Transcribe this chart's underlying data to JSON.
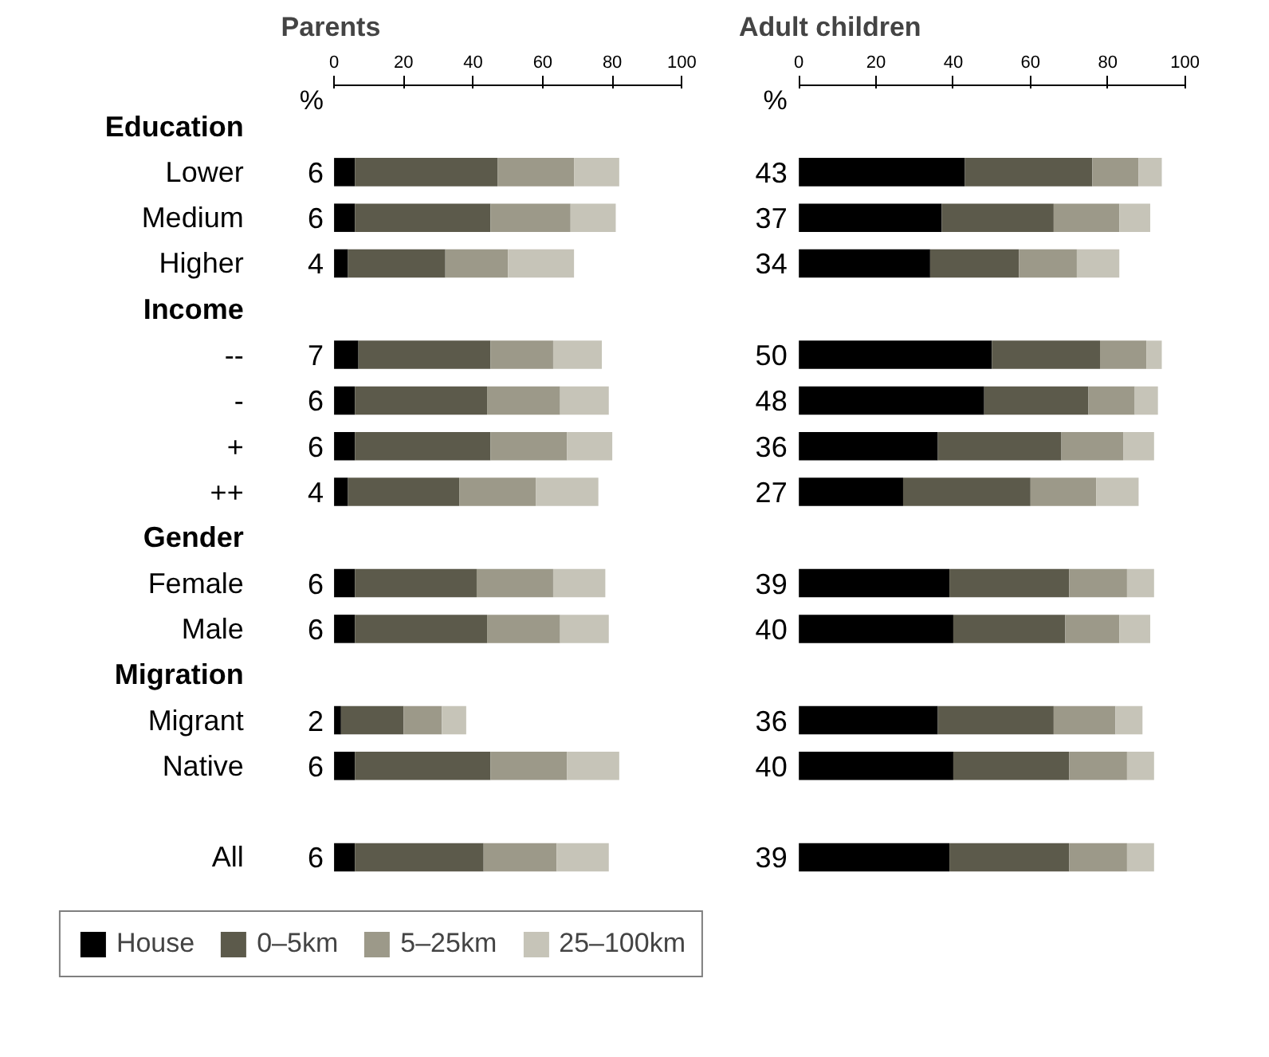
{
  "chart_data": [
    {
      "type": "bar",
      "orientation": "horizontal",
      "stacked": true,
      "title": "Parents",
      "xlabel": "%",
      "categories": [
        "Education",
        "Lower",
        "Medium",
        "Higher",
        "Income",
        "--",
        "-",
        "+",
        "++",
        "Gender",
        "Female",
        "Male",
        "Migration",
        "Migrant",
        "Native",
        null,
        "All"
      ],
      "series": [
        {
          "name": "House",
          "color": "#000000",
          "values": [
            null,
            6,
            6,
            4,
            null,
            7,
            6,
            6,
            4,
            null,
            6,
            6,
            null,
            2,
            6,
            null,
            6
          ],
          "value_labels": [
            null,
            "6",
            "6",
            "4",
            null,
            "7",
            "6",
            "6",
            "4",
            null,
            "6",
            "6",
            null,
            "2",
            "6",
            null,
            "6"
          ]
        },
        {
          "name": "0–5km",
          "color": "#5c5a4b",
          "values": [
            null,
            41,
            39,
            28,
            null,
            38,
            38,
            39,
            32,
            null,
            35,
            38,
            null,
            18,
            39,
            null,
            37
          ]
        },
        {
          "name": "5–25km",
          "color": "#9c9989",
          "values": [
            null,
            22,
            23,
            18,
            null,
            18,
            21,
            22,
            22,
            null,
            22,
            21,
            null,
            11,
            22,
            null,
            21
          ]
        },
        {
          "name": "25–100km",
          "color": "#c6c4b8",
          "values": [
            null,
            13,
            13,
            19,
            null,
            14,
            14,
            13,
            18,
            null,
            15,
            14,
            null,
            7,
            15,
            null,
            15
          ]
        }
      ],
      "xlim": [
        0,
        100
      ],
      "xticks": [
        0,
        20,
        40,
        60,
        80,
        100
      ],
      "grid": false,
      "legend": "bottom"
    },
    {
      "type": "bar",
      "orientation": "horizontal",
      "stacked": true,
      "title": "Adult children",
      "xlabel": "%",
      "categories": [
        null,
        null,
        null,
        null,
        null,
        null,
        null,
        null,
        null,
        null,
        null,
        null,
        null,
        null,
        null,
        null,
        null
      ],
      "series": [
        {
          "color": "#000000",
          "values": [
            null,
            43,
            37,
            34,
            null,
            50,
            48,
            36,
            27,
            null,
            39,
            40,
            null,
            36,
            40,
            null,
            39
          ],
          "value_labels": [
            null,
            "43",
            "37",
            "34",
            null,
            "50",
            "48",
            "36",
            "27",
            null,
            "39",
            "40",
            null,
            "36",
            "40",
            null,
            "39"
          ]
        },
        {
          "color": "#5c5a4b",
          "values": [
            null,
            33,
            29,
            23,
            null,
            28,
            27,
            32,
            33,
            null,
            31,
            29,
            null,
            30,
            30,
            null,
            31
          ]
        },
        {
          "color": "#9c9989",
          "values": [
            null,
            12,
            17,
            15,
            null,
            12,
            12,
            16,
            17,
            null,
            15,
            14,
            null,
            16,
            15,
            null,
            15
          ]
        },
        {
          "color": "#c6c4b8",
          "values": [
            null,
            6,
            8,
            11,
            null,
            4,
            6,
            8,
            11,
            null,
            7,
            8,
            null,
            7,
            7,
            null,
            7
          ]
        }
      ],
      "xlim": [
        0,
        100
      ],
      "xticks": [
        0,
        20,
        40,
        60,
        80,
        100
      ],
      "grid": false
    }
  ]
}
